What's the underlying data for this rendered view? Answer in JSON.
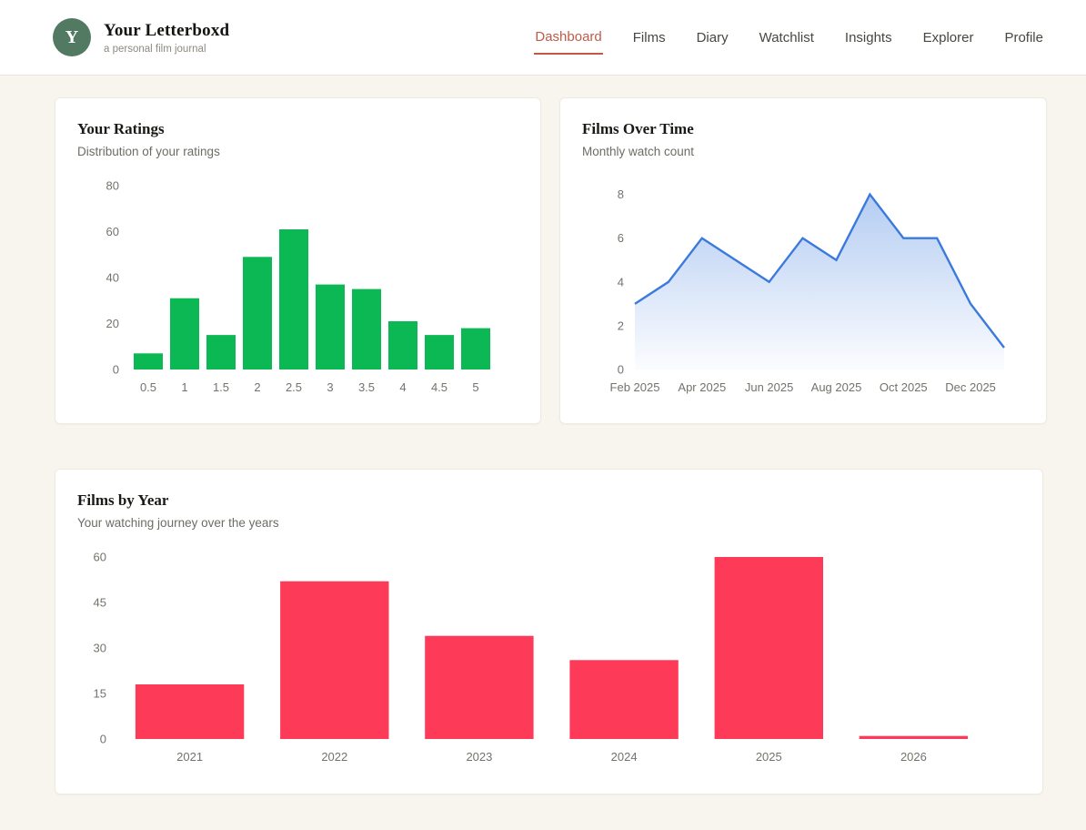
{
  "header": {
    "logo_letter": "Y",
    "app_title": "Your Letterboxd",
    "app_subtitle": "a personal film journal",
    "nav": [
      {
        "label": "Dashboard",
        "active": true
      },
      {
        "label": "Films",
        "active": false
      },
      {
        "label": "Diary",
        "active": false
      },
      {
        "label": "Watchlist",
        "active": false
      },
      {
        "label": "Insights",
        "active": false
      },
      {
        "label": "Explorer",
        "active": false
      },
      {
        "label": "Profile",
        "active": false
      }
    ],
    "active_color": "#bf5b45",
    "logo_color": "#527a63"
  },
  "chart_data": [
    {
      "type": "bar",
      "title": "Your Ratings",
      "subtitle": "Distribution of your ratings",
      "categories": [
        "0.5",
        "1",
        "1.5",
        "2",
        "2.5",
        "3",
        "3.5",
        "4",
        "4.5",
        "5"
      ],
      "values": [
        7,
        31,
        15,
        49,
        61,
        37,
        35,
        21,
        15,
        18
      ],
      "xlabel": "",
      "ylabel": "",
      "ylim": [
        0,
        80
      ],
      "yticks": [
        0,
        20,
        40,
        60,
        80
      ],
      "grid": false,
      "legend": false,
      "color": "#0cb853"
    },
    {
      "type": "area",
      "title": "Films Over Time",
      "subtitle": "Monthly watch count",
      "x": [
        "Feb 2025",
        "Mar 2025",
        "Apr 2025",
        "May 2025",
        "Jun 2025",
        "Jul 2025",
        "Aug 2025",
        "Sep 2025",
        "Oct 2025",
        "Nov 2025",
        "Dec 2025",
        "Jan 2026"
      ],
      "values": [
        3,
        4,
        6,
        5,
        4,
        6,
        5,
        8,
        6,
        6,
        3,
        1
      ],
      "xticklabels": [
        "Feb 2025",
        "Apr 2025",
        "Jun 2025",
        "Aug 2025",
        "Oct 2025",
        "Dec 2025"
      ],
      "xtick_indices": [
        0,
        2,
        4,
        6,
        8,
        10
      ],
      "xlabel": "",
      "ylabel": "",
      "ylim": [
        0,
        8.4
      ],
      "yticks": [
        0,
        2,
        4,
        6,
        8
      ],
      "grid": false,
      "legend": false,
      "color": "#3b7add",
      "fill": "gradient-fade-down"
    },
    {
      "type": "bar",
      "title": "Films by Year",
      "subtitle": "Your watching journey over the years",
      "categories": [
        "2021",
        "2022",
        "2023",
        "2024",
        "2025",
        "2026"
      ],
      "values": [
        18,
        52,
        34,
        26,
        60,
        1
      ],
      "xlabel": "",
      "ylabel": "",
      "ylim": [
        0,
        60
      ],
      "yticks": [
        0,
        15,
        30,
        45,
        60
      ],
      "grid": false,
      "legend": false,
      "color": "#fd3a57"
    }
  ]
}
